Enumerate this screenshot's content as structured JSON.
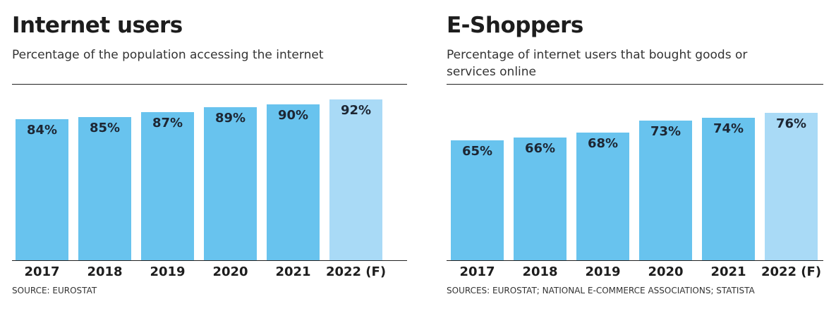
{
  "chart_data": [
    {
      "type": "bar",
      "title": "Internet users",
      "subtitle": "Percentage of the population accessing the internet",
      "categories": [
        "2017",
        "2018",
        "2019",
        "2020",
        "2021",
        "2022 (F)"
      ],
      "values": [
        84,
        85,
        87,
        89,
        90,
        92
      ],
      "value_labels": [
        "84%",
        "85%",
        "87%",
        "89%",
        "90%",
        "92%"
      ],
      "forecast_index": 5,
      "source": "SOURCE: EUROSTAT",
      "grid": false
    },
    {
      "type": "bar",
      "title": "E-Shoppers",
      "subtitle": "Percentage of internet users that bought goods or services online",
      "categories": [
        "2017",
        "2018",
        "2019",
        "2020",
        "2021",
        "2022 (F)"
      ],
      "values": [
        65,
        66,
        68,
        73,
        74,
        76
      ],
      "value_labels": [
        "65%",
        "66%",
        "68%",
        "73%",
        "74%",
        "76%"
      ],
      "forecast_index": 5,
      "source": "SOURCES: EUROSTAT; NATIONAL E-COMMERCE ASSOCIATIONS; STATISTA",
      "grid": false
    }
  ],
  "colors": {
    "bar": "#68c3ee",
    "forecast": "#a9daf6"
  }
}
